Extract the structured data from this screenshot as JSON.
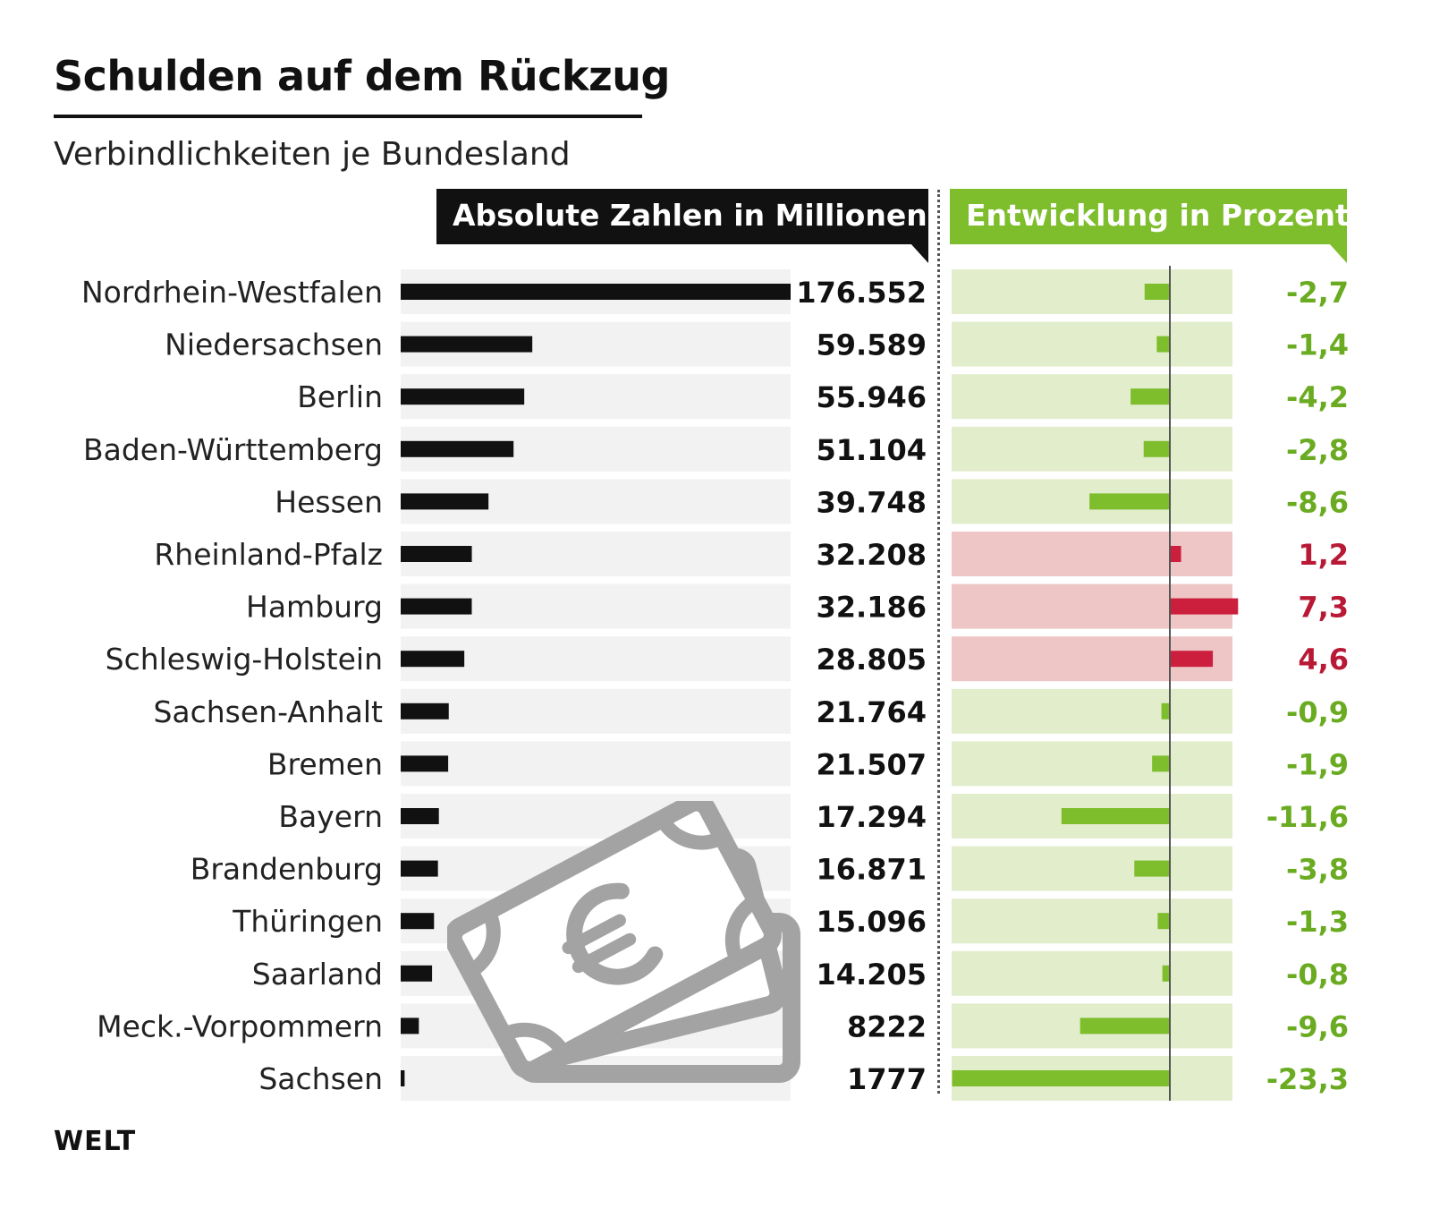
{
  "chart_data": {
    "type": "bar",
    "title": "Schulden auf dem Rückzug",
    "subtitle": "Verbindlichkeiten je Bundesland",
    "categories": [
      "Nordrhein-Westfalen",
      "Niedersachsen",
      "Berlin",
      "Baden-Württemberg",
      "Hessen",
      "Rheinland-Pfalz",
      "Hamburg",
      "Schleswig-Holstein",
      "Sachsen-Anhalt",
      "Bremen",
      "Bayern",
      "Brandenburg",
      "Thüringen",
      "Saarland",
      "Meck.-Vorpommern",
      "Sachsen"
    ],
    "series": [
      {
        "name": "Absolute Zahlen in Millionen",
        "values": [
          176552,
          59589,
          55946,
          51104,
          39748,
          32208,
          32186,
          28805,
          21764,
          21507,
          17294,
          16871,
          15096,
          14205,
          8222,
          1777
        ],
        "labels": [
          "176.552",
          "59.589",
          "55.946",
          "51.104",
          "39.748",
          "32.208",
          "32.186",
          "28.805",
          "21.764",
          "21.507",
          "17.294",
          "16.871",
          "15.096",
          "14.205",
          "8222",
          "1777"
        ]
      },
      {
        "name": "Entwicklung in Prozent",
        "values": [
          -2.7,
          -1.4,
          -4.2,
          -2.8,
          -8.6,
          1.2,
          7.3,
          4.6,
          -0.9,
          -1.9,
          -11.6,
          -3.8,
          -1.3,
          -0.8,
          -9.6,
          -23.3
        ],
        "labels": [
          "-2,7",
          "-1,4",
          "-4,2",
          "-2,8",
          "-8,6",
          "1,2",
          "7,3",
          "4,6",
          "-0,9",
          "-1,9",
          "-11,6",
          "-3,8",
          "-1,3",
          "-0,8",
          "-9,6",
          "-23,3"
        ]
      }
    ],
    "abs_range": [
      0,
      176552
    ],
    "pct_range": [
      -23.3,
      7.3
    ],
    "colors": {
      "abs_bar": "#111111",
      "abs_bg": "#f2f2f2",
      "neg_bar": "#7ebd2c",
      "neg_bg": "#e2edcc",
      "neg_text": "#6aab22",
      "pos_bar": "#cc1f3d",
      "pos_bg": "#efc6c6",
      "pos_text": "#b81a36",
      "icon": "#a3a3a3"
    }
  },
  "header": {
    "abs_label": "Absolute Zahlen in Millionen",
    "pct_label": "Entwicklung in Prozent"
  },
  "footer": {
    "logo": "WELT"
  },
  "icons": {
    "money": "euro-banknotes-icon"
  }
}
